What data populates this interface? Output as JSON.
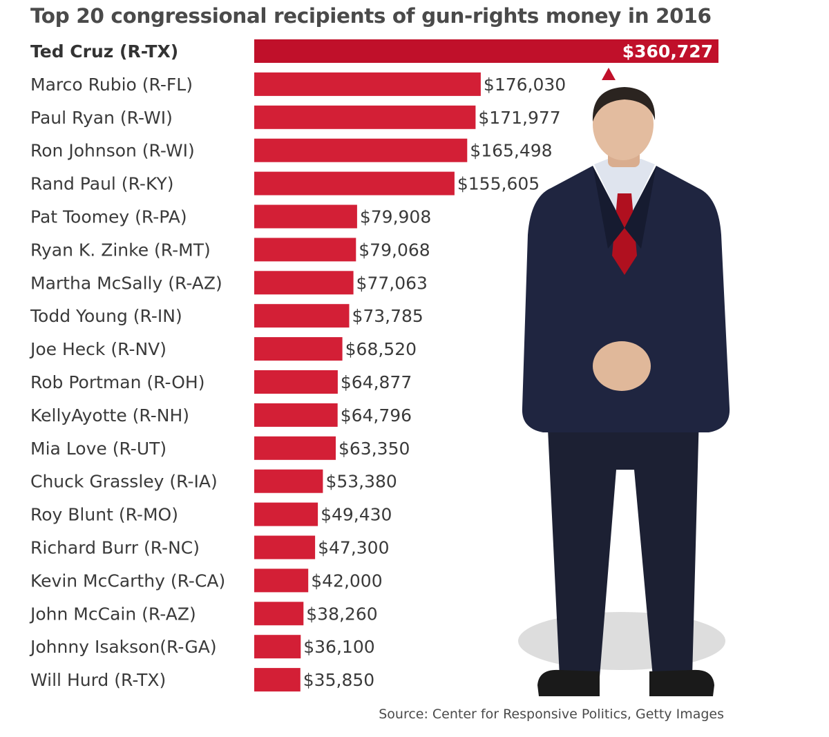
{
  "chart_data": {
    "type": "bar",
    "orientation": "horizontal",
    "title": "Top 20 congressional recipients of gun-rights money in 2016",
    "source": "Source: Center for Responsive Politics, Getty Images",
    "categories": [
      "Ted Cruz (R-TX)",
      "Marco Rubio (R-FL)",
      "Paul Ryan (R-WI)",
      "Ron Johnson (R-WI)",
      "Rand Paul (R-KY)",
      "Pat Toomey (R-PA)",
      "Ryan K. Zinke (R-MT)",
      "Martha McSally (R-AZ)",
      "Todd Young (R-IN)",
      "Joe Heck (R-NV)",
      "Rob Portman (R-OH)",
      "KellyAyotte (R-NH)",
      "Mia Love (R-UT)",
      "Chuck Grassley (R-IA)",
      "Roy Blunt (R-MO)",
      "Richard Burr (R-NC)",
      "Kevin McCarthy (R-CA)",
      "John McCain (R-AZ)",
      "Johnny  Isakson(R-GA)",
      "Will Hurd (R-TX)"
    ],
    "values": [
      360727,
      176030,
      171977,
      165498,
      155605,
      79908,
      79068,
      77063,
      73785,
      68520,
      64877,
      64796,
      63350,
      53380,
      49430,
      47300,
      42000,
      38260,
      36100,
      35850
    ],
    "value_labels": [
      "$360,727",
      "$176,030",
      "$171,977",
      "$165,498",
      "$155,605",
      "$79,908",
      "$79,068",
      "$77,063",
      "$73,785",
      "$68,520",
      "$64,877",
      "$64,796",
      "$63,350",
      "$53,380",
      "$49,430",
      "$47,300",
      "$42,000",
      "$38,260",
      "$36,100",
      "$35,850"
    ],
    "highlight": "Ted Cruz (R-TX)",
    "grid": false,
    "legend": "none"
  },
  "photo_icon": "standing-man-in-suit",
  "colors": {
    "bar": "#d31f36",
    "highlight_bar": "#c0102a",
    "text": "#3a3a3a",
    "title": "#4a4a4a",
    "arrow": "#c0102a"
  }
}
